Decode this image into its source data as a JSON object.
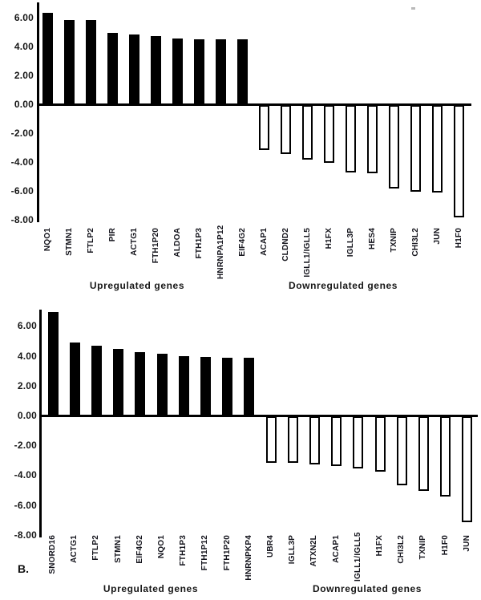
{
  "figure": {
    "panel_label": "B.",
    "colors": {
      "bar_positive": "#000000",
      "bar_negative_fill": "#ffffff",
      "bar_negative_border": "#000000",
      "axis": "#000000",
      "background": "#ffffff"
    }
  },
  "chart_data": [
    {
      "type": "bar",
      "title": "",
      "ylabel": "",
      "ylim": [
        -8.2,
        7.0
      ],
      "grid": false,
      "legend": false,
      "yticks": [
        "6.00",
        "4.00",
        "2.00",
        "0.00",
        "-2.00",
        "-4.00",
        "-6.00",
        "-8.00"
      ],
      "groups": [
        {
          "label": "Upregulated genes",
          "categories": [
            "NQO1",
            "STMN1",
            "FTLP2",
            "PIR",
            "ACTG1",
            "FTH1P20",
            "ALDOA",
            "FTH1P3",
            "HNRNPA1P12",
            "EIF4G2"
          ],
          "values": [
            6.3,
            5.8,
            5.8,
            4.9,
            4.75,
            4.65,
            4.5,
            4.45,
            4.45,
            4.45
          ]
        },
        {
          "label": "Downregulated genes",
          "categories": [
            "ACAP1",
            "CLDND2",
            "IGLL1/IGLL5",
            "H1FX",
            "IGLL3P",
            "HES4",
            "TXNIP",
            "CHI3L2",
            "JUN",
            "H1F0"
          ],
          "values": [
            -3.1,
            -3.4,
            -3.8,
            -4.0,
            -4.65,
            -4.7,
            -5.8,
            -6.0,
            -6.05,
            -7.8
          ]
        }
      ]
    },
    {
      "type": "bar",
      "title": "",
      "ylabel": "",
      "ylim": [
        -8.2,
        7.2
      ],
      "grid": false,
      "legend": false,
      "yticks": [
        "6.00",
        "4.00",
        "2.00",
        "0.00",
        "-2.00",
        "-4.00",
        "-6.00",
        "-8.00"
      ],
      "groups": [
        {
          "label": "Upregulated genes",
          "categories": [
            "SNORD16",
            "ACTG1",
            "FTLP2",
            "STMN1",
            "EIF4G2",
            "NQO1",
            "FTH1P3",
            "FTH1P12",
            "FTH1P20",
            "HNRNPKP4"
          ],
          "values": [
            6.9,
            4.85,
            4.65,
            4.4,
            4.2,
            4.1,
            3.9,
            3.85,
            3.8,
            3.8
          ]
        },
        {
          "label": "Downregulated genes",
          "categories": [
            "UBR4",
            "IGLL3P",
            "ATXN2L",
            "ACAP1",
            "IGLL1/IGLL5",
            "H1FX",
            "CHI3L2",
            "TXNIP",
            "H1F0",
            "JUN"
          ],
          "values": [
            -3.1,
            -3.1,
            -3.25,
            -3.35,
            -3.5,
            -3.7,
            -4.6,
            -5.0,
            -5.35,
            -7.1
          ]
        }
      ]
    }
  ]
}
